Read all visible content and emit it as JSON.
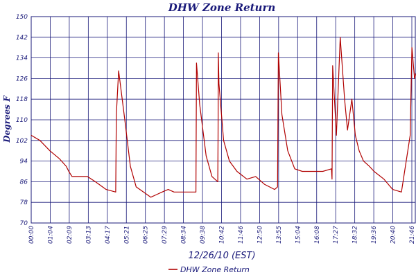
{
  "chart_data": {
    "type": "line",
    "title": "DHW Zone Return",
    "xlabel": "12/26/10 (EST)",
    "ylabel": "Degrees F",
    "ylim": [
      70,
      150
    ],
    "yticks": [
      "70",
      "78",
      "86",
      "94",
      "102",
      "110",
      "118",
      "126",
      "134",
      "142",
      "150"
    ],
    "xticks": [
      "00:00",
      "01:04",
      "02:09",
      "03:13",
      "04:17",
      "05:21",
      "06:25",
      "07:29",
      "08:34",
      "09:38",
      "10:42",
      "11:46",
      "12:50",
      "13:55",
      "15:04",
      "16:08",
      "17:27",
      "18:32",
      "19:36",
      "20:40",
      "21:46"
    ],
    "grid": true,
    "legend_position": "bottom",
    "colors": {
      "series": "#b00000",
      "grid": "#1a1a7a",
      "text": "#1a1a7a"
    },
    "series": [
      {
        "name": "DHW Zone Return",
        "x": [
          "00:00",
          "00:30",
          "01:04",
          "01:36",
          "02:00",
          "02:09",
          "02:20",
          "02:40",
          "03:13",
          "03:40",
          "04:17",
          "04:50",
          "04:52",
          "05:00",
          "05:21",
          "05:40",
          "06:00",
          "06:25",
          "06:50",
          "07:10",
          "07:29",
          "07:50",
          "08:10",
          "08:34",
          "09:00",
          "09:25",
          "09:27",
          "09:38",
          "10:00",
          "10:20",
          "10:40",
          "10:41",
          "10:42",
          "10:44",
          "11:00",
          "11:20",
          "11:46",
          "12:20",
          "12:50",
          "13:20",
          "13:55",
          "14:05",
          "14:08",
          "14:20",
          "14:40",
          "15:04",
          "15:30",
          "16:08",
          "16:40",
          "17:10",
          "17:12",
          "17:14",
          "17:27",
          "17:40",
          "17:55",
          "18:05",
          "18:20",
          "18:32",
          "18:45",
          "19:00",
          "19:20",
          "19:36",
          "20:10",
          "20:40",
          "21:10",
          "21:40",
          "21:46",
          "21:55",
          "22:00"
        ],
        "values": [
          104,
          102,
          98,
          95,
          92,
          90,
          88,
          88,
          88,
          86,
          83,
          82,
          112,
          129,
          110,
          92,
          84,
          82,
          80,
          81,
          82,
          83,
          82,
          82,
          82,
          82,
          132,
          116,
          96,
          88,
          86,
          103,
          136,
          124,
          102,
          94,
          90,
          87,
          88,
          85,
          83,
          84,
          136,
          112,
          98,
          91,
          90,
          90,
          90,
          91,
          87,
          131,
          104,
          142,
          118,
          106,
          118,
          104,
          98,
          94,
          92,
          90,
          87,
          83,
          82,
          104,
          138,
          126,
          128
        ]
      }
    ]
  },
  "legend": {
    "label": "DHW Zone Return"
  }
}
